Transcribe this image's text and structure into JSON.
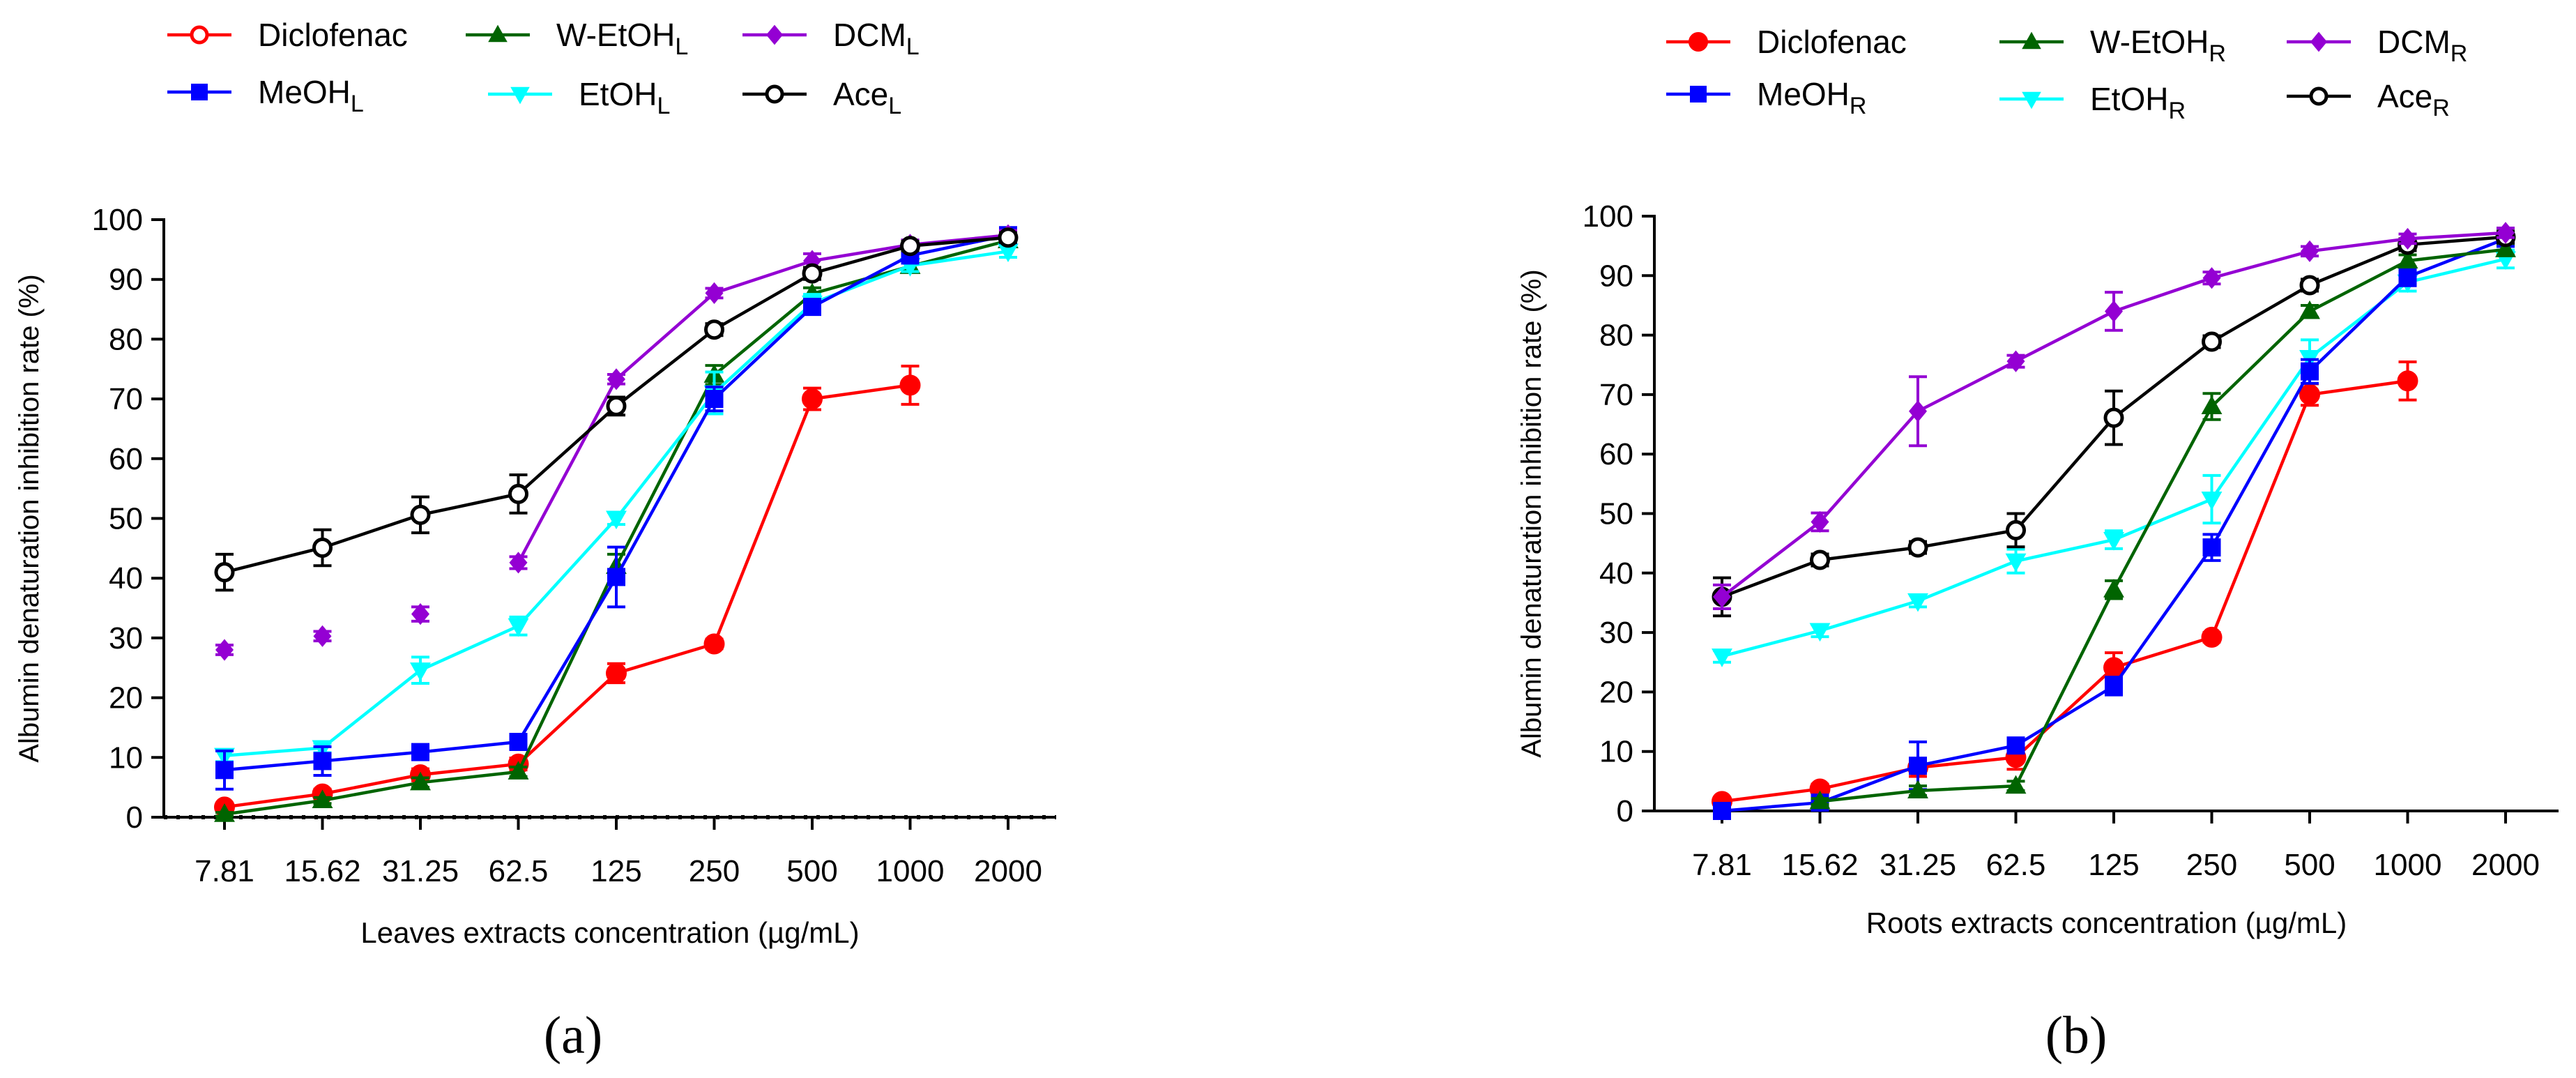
{
  "chart_data": [
    {
      "type": "line",
      "panel_label": "(a)",
      "xlabel": "Leaves extracts concentration (µg/mL)",
      "ylabel": "Albumin denaturation inhibition rate (%)",
      "categories": [
        "7.81",
        "15.62",
        "31.25",
        "62.5",
        "125",
        "250",
        "500",
        "1000",
        "2000"
      ],
      "ylim": [
        0,
        100
      ],
      "yticks": [
        "0",
        "10",
        "20",
        "30",
        "40",
        "50",
        "60",
        "70",
        "80",
        "90",
        "100"
      ],
      "legend": [
        {
          "name": "Diclofenac",
          "sub": "",
          "color": "#ff0000",
          "marker": "circle-open"
        },
        {
          "name": "MeOH",
          "sub": "L",
          "color": "#0000ff",
          "marker": "square"
        },
        {
          "name": "W-EtOH",
          "sub": "L",
          "color": "#006400",
          "marker": "triangle"
        },
        {
          "name": "EtOH",
          "sub": "L",
          "color": "#00ffff",
          "marker": "triangle-down"
        },
        {
          "name": "DCM",
          "sub": "L",
          "color": "#9400d3",
          "marker": "diamond"
        },
        {
          "name": "Ace",
          "sub": "L",
          "color": "#000000",
          "marker": "circle-open"
        }
      ],
      "series": [
        {
          "name": "Diclofenac",
          "color": "#ff0000",
          "marker": "circle",
          "connected_from": 0,
          "values": [
            1.7,
            3.9,
            7.1,
            8.9,
            24.1,
            29.0,
            70.0,
            72.3,
            null
          ],
          "errors": [
            0.5,
            0.8,
            1.0,
            1.0,
            1.6,
            0.8,
            1.8,
            3.2,
            null
          ]
        },
        {
          "name": "W-EtOH",
          "color": "#006400",
          "marker": "triangle",
          "connected_from": 0,
          "values": [
            0.5,
            2.8,
            5.8,
            7.6,
            42.0,
            74.0,
            87.6,
            92.2,
            96.5
          ],
          "errors": [
            0.3,
            0.5,
            0.8,
            0.8,
            2.0,
            1.6,
            1.0,
            1.0,
            0.8
          ]
        },
        {
          "name": "EtOH",
          "color": "#00ffff",
          "marker": "triangle-down",
          "connected_from": 0,
          "values": [
            10.3,
            11.6,
            24.6,
            32.0,
            50.0,
            71.0,
            86.0,
            92.3,
            94.7
          ],
          "errors": [
            1.0,
            0.8,
            2.2,
            1.5,
            1.0,
            3.5,
            1.5,
            1.0,
            1.0
          ]
        },
        {
          "name": "MeOH",
          "color": "#0000ff",
          "marker": "square",
          "connected_from": 0,
          "values": [
            7.9,
            9.4,
            10.9,
            12.6,
            40.2,
            70.0,
            85.4,
            94.0,
            97.4
          ],
          "errors": [
            3.2,
            2.4,
            1.0,
            1.0,
            5.0,
            2.0,
            1.0,
            1.0,
            1.0
          ]
        },
        {
          "name": "DCM",
          "color": "#9400d3",
          "marker": "diamond",
          "connected_from": 3,
          "values": [
            28.0,
            30.3,
            34.0,
            42.6,
            73.3,
            87.7,
            93.1,
            95.8,
            97.4
          ],
          "errors": [
            0.8,
            0.8,
            1.2,
            1.0,
            0.8,
            0.8,
            1.2,
            0.8,
            0.8
          ]
        },
        {
          "name": "Ace",
          "color": "#000000",
          "marker": "circle-open",
          "connected_from": 0,
          "values": [
            41.0,
            45.1,
            50.6,
            54.1,
            68.8,
            81.6,
            91.0,
            95.6,
            97.0
          ],
          "errors": [
            3.0,
            3.0,
            3.0,
            3.2,
            1.5,
            1.0,
            1.0,
            0.8,
            0.8
          ]
        }
      ]
    },
    {
      "type": "line",
      "panel_label": "(b)",
      "xlabel": "Roots  extracts concentration (µg/mL)",
      "ylabel": "Albumin denaturation inhibition rate (%)",
      "categories": [
        "7.81",
        "15.62",
        "31.25",
        "62.5",
        "125",
        "250",
        "500",
        "1000",
        "2000"
      ],
      "ylim": [
        0,
        100
      ],
      "yticks": [
        "0",
        "10",
        "20",
        "30",
        "40",
        "50",
        "60",
        "70",
        "80",
        "90",
        "100"
      ],
      "legend": [
        {
          "name": "Diclofenac",
          "sub": "",
          "color": "#ff0000",
          "marker": "circle"
        },
        {
          "name": "MeOH",
          "sub": "R",
          "color": "#0000ff",
          "marker": "square"
        },
        {
          "name": "W-EtOH",
          "sub": "R",
          "color": "#006400",
          "marker": "triangle"
        },
        {
          "name": "EtOH",
          "sub": "R",
          "color": "#00ffff",
          "marker": "triangle-down"
        },
        {
          "name": "DCM",
          "sub": "R",
          "color": "#9400d3",
          "marker": "diamond"
        },
        {
          "name": "Ace",
          "sub": "R",
          "color": "#000000",
          "marker": "circle-open"
        }
      ],
      "series": [
        {
          "name": "EtOH",
          "color": "#00ffff",
          "marker": "triangle-down",
          "connected_from": 0,
          "values": [
            26.0,
            30.3,
            35.3,
            42.0,
            45.6,
            52.4,
            76.2,
            88.9,
            92.8
          ],
          "errors": [
            1.0,
            1.0,
            1.0,
            2.0,
            1.5,
            4.0,
            3.0,
            1.5,
            1.5
          ]
        },
        {
          "name": "Diclofenac",
          "color": "#ff0000",
          "marker": "circle",
          "connected_from": 0,
          "values": [
            1.6,
            3.7,
            7.3,
            9.0,
            24.1,
            29.2,
            70.0,
            72.3,
            null
          ],
          "errors": [
            0.5,
            0.8,
            1.5,
            2.0,
            2.5,
            0.8,
            1.8,
            3.2,
            null
          ]
        },
        {
          "name": "MeOH",
          "color": "#0000ff",
          "marker": "square",
          "connected_from": 0,
          "values": [
            0.0,
            1.4,
            7.6,
            11.0,
            21.0,
            44.3,
            73.9,
            89.8,
            96.2
          ],
          "errors": [
            0.3,
            0.5,
            4.0,
            1.2,
            1.5,
            2.2,
            2.0,
            1.5,
            1.0
          ]
        },
        {
          "name": "W-EtOH",
          "color": "#006400",
          "marker": "triangle",
          "connected_from": 0,
          "values": [
            null,
            1.6,
            3.4,
            4.2,
            37.2,
            68.0,
            84.0,
            92.5,
            94.4
          ],
          "errors": [
            null,
            0.5,
            0.8,
            0.8,
            1.5,
            2.2,
            1.0,
            1.0,
            1.0
          ]
        },
        {
          "name": "Ace",
          "color": "#000000",
          "marker": "circle-open",
          "connected_from": 0,
          "values": [
            36.0,
            42.2,
            44.3,
            47.2,
            66.1,
            78.9,
            88.4,
            95.2,
            96.5
          ],
          "errors": [
            3.2,
            1.0,
            1.0,
            2.8,
            4.5,
            1.0,
            1.0,
            1.0,
            1.0
          ]
        },
        {
          "name": "DCM",
          "color": "#9400d3",
          "marker": "diamond",
          "connected_from": 0,
          "values": [
            36.0,
            48.6,
            67.2,
            75.6,
            84.0,
            89.6,
            94.1,
            96.2,
            97.2
          ],
          "errors": [
            2.0,
            1.5,
            5.8,
            1.0,
            3.2,
            1.0,
            0.8,
            0.8,
            0.8
          ]
        }
      ]
    }
  ]
}
